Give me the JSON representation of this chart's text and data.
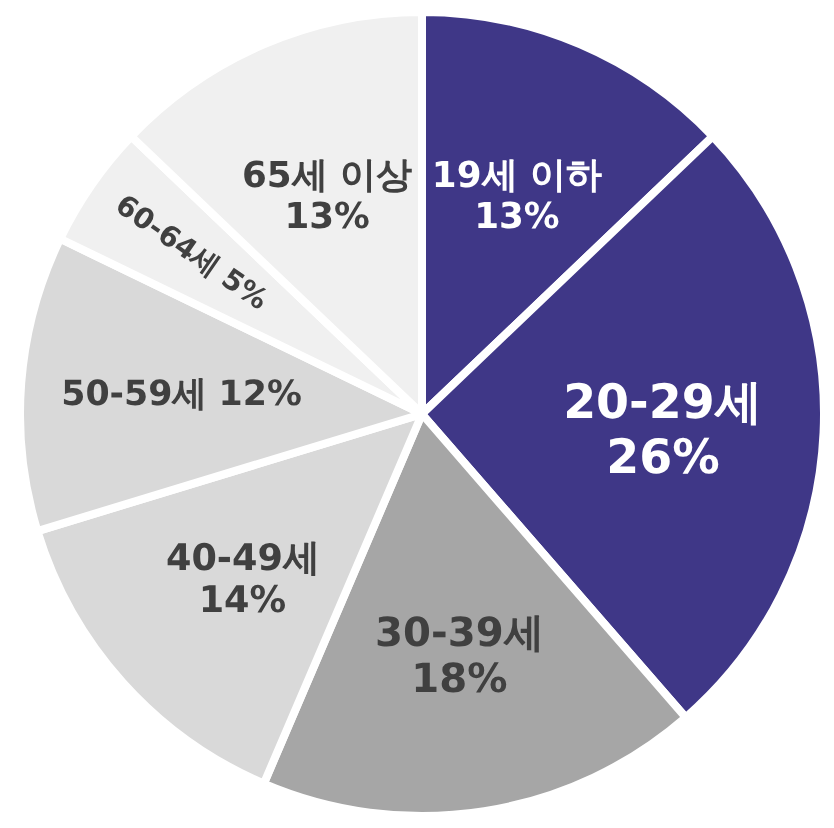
{
  "chart_data": {
    "type": "pie",
    "categories": [
      "19세 이하",
      "20-29세",
      "30-39세",
      "40-49세",
      "50-59세",
      "60-64세",
      "65세 이상"
    ],
    "values": [
      13,
      26,
      18,
      14,
      12,
      5,
      13
    ],
    "value_labels": [
      "13%",
      "26%",
      "18%",
      "14%",
      "12%",
      "5%",
      "13%"
    ],
    "colors": [
      "#3f3787",
      "#3f3787",
      "#a6a6a6",
      "#d9d9d9",
      "#d9d9d9",
      "#f0f0f0",
      "#f0f0f0"
    ]
  }
}
